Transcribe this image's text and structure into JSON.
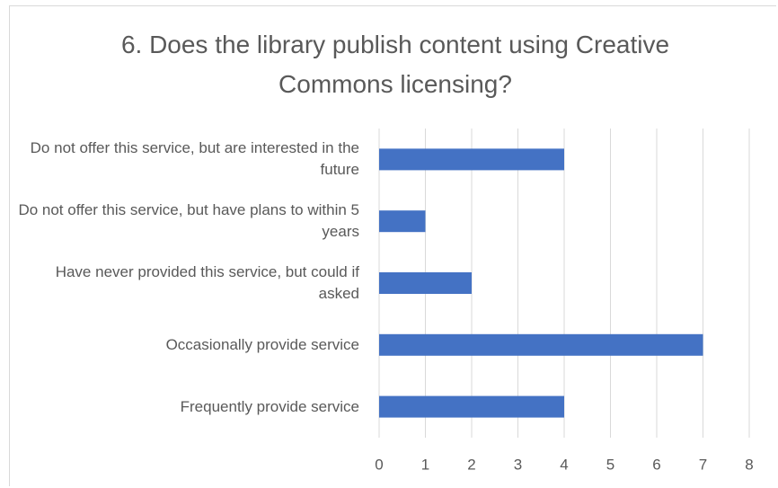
{
  "chart_data": {
    "type": "barh",
    "title": "6. Does the library publish content using Creative Commons licensing?",
    "categories": [
      "Do not offer this service, but are interested in the future",
      "Do not offer this service, but have plans to within 5 years",
      "Have never provided this service, but could if asked",
      "Occasionally provide service",
      "Frequently provide service"
    ],
    "values": [
      4,
      1,
      2,
      7,
      4
    ],
    "color": "#4472c4",
    "xlim": [
      0,
      8
    ],
    "xticks": [
      0,
      1,
      2,
      3,
      4,
      5,
      6,
      7,
      8
    ],
    "grid": true
  }
}
